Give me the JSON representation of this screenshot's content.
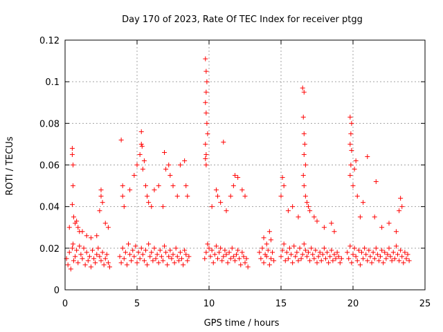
{
  "chart_data": {
    "type": "scatter",
    "title": "Day 170 of 2023, Rate Of TEC Index for receiver ptgg",
    "xlabel": "GPS time / hours",
    "ylabel": "ROTI / TECUs",
    "xlim": [
      0,
      25
    ],
    "ylim": [
      0,
      0.12
    ],
    "x_ticks": [
      0,
      5,
      10,
      15,
      20,
      25
    ],
    "x_tick_labels": [
      "0",
      "5",
      "10",
      "15",
      "20",
      "25"
    ],
    "y_ticks": [
      0,
      0.02,
      0.04,
      0.06,
      0.08,
      0.1,
      0.12
    ],
    "y_tick_labels": [
      "0",
      "0.02",
      "0.04",
      "0.06",
      "0.08",
      "0.1",
      "0.12"
    ],
    "grid": true,
    "marker": "plus",
    "color": "#ff0000",
    "series": [
      {
        "x": [
          0.1,
          0.2,
          0.3,
          0.4,
          0.5,
          0.55,
          0.6,
          0.7,
          0.8,
          0.9,
          1.0,
          1.1,
          1.2,
          1.3,
          1.4,
          1.5,
          1.6,
          1.7,
          1.8,
          1.9,
          2.0,
          2.1,
          2.2,
          2.3,
          2.4,
          2.5,
          2.6,
          2.7,
          2.8,
          2.9,
          3.0,
          3.1,
          0.5,
          0.5,
          0.55,
          0.55,
          0.5,
          0.6,
          0.7,
          0.9,
          1.2,
          1.5,
          2.5,
          2.5,
          2.6,
          3.0,
          2.4,
          1.8,
          0.3,
          0.8,
          1.0,
          2.2,
          2.8,
          3.8,
          3.9,
          4.0,
          4.1,
          4.2,
          4.3,
          4.4,
          4.5,
          4.6,
          4.7,
          4.8,
          4.9,
          5.0,
          5.1,
          5.2,
          5.3,
          5.4,
          5.5,
          5.6,
          5.7,
          5.8,
          5.9,
          6.0,
          6.1,
          6.2,
          6.3,
          6.4,
          6.5,
          6.6,
          6.7,
          6.8,
          6.9,
          7.0,
          7.1,
          7.2,
          7.3,
          7.4,
          7.5,
          7.6,
          7.7,
          7.8,
          7.9,
          8.0,
          8.1,
          8.2,
          8.3,
          8.4,
          8.5,
          8.6,
          4.0,
          4.0,
          4.1,
          4.5,
          4.8,
          5.0,
          5.2,
          5.3,
          5.3,
          5.35,
          5.4,
          5.5,
          5.6,
          5.7,
          5.8,
          6.0,
          6.2,
          6.5,
          6.9,
          7.0,
          7.2,
          7.3,
          7.5,
          7.8,
          8.0,
          8.3,
          8.4,
          8.5,
          3.9,
          6.8,
          9.7,
          9.8,
          9.9,
          10.0,
          10.1,
          10.2,
          10.3,
          10.4,
          10.5,
          10.6,
          10.7,
          10.8,
          10.9,
          11.0,
          11.1,
          11.2,
          11.3,
          11.4,
          11.5,
          11.6,
          11.7,
          11.8,
          11.9,
          12.0,
          12.1,
          12.2,
          12.3,
          12.4,
          12.5,
          12.6,
          12.7,
          9.75,
          9.8,
          9.85,
          9.8,
          9.75,
          9.8,
          9.85,
          9.9,
          9.75,
          9.8,
          9.75,
          9.8,
          10.5,
          10.6,
          11.0,
          11.5,
          11.7,
          11.8,
          12.0,
          12.3,
          12.5,
          10.2,
          10.8,
          11.2,
          13.5,
          13.6,
          13.7,
          13.8,
          13.9,
          14.0,
          14.1,
          14.2,
          14.3,
          14.4,
          14.5,
          13.8,
          14.0,
          14.2,
          14.3,
          15.0,
          15.1,
          15.2,
          15.3,
          15.4,
          15.5,
          15.6,
          15.7,
          15.8,
          15.9,
          16.0,
          16.1,
          16.2,
          16.3,
          16.4,
          16.5,
          16.6,
          16.7,
          16.8,
          16.9,
          17.0,
          17.1,
          17.2,
          17.3,
          17.4,
          17.5,
          17.6,
          17.7,
          17.8,
          17.9,
          18.0,
          18.1,
          18.2,
          18.3,
          18.4,
          18.5,
          18.6,
          18.7,
          18.8,
          18.9,
          19.0,
          19.1,
          19.2,
          15.1,
          15.2,
          15.0,
          16.5,
          16.6,
          16.55,
          16.6,
          16.65,
          16.6,
          16.7,
          16.55,
          16.6,
          16.7,
          16.8,
          16.9,
          17.0,
          17.3,
          17.5,
          18.0,
          18.5,
          18.7,
          15.5,
          15.8,
          16.2,
          19.6,
          19.7,
          19.8,
          19.9,
          20.0,
          20.1,
          20.2,
          20.3,
          20.4,
          20.5,
          20.6,
          20.7,
          20.8,
          20.9,
          21.0,
          21.1,
          21.2,
          21.3,
          21.4,
          21.5,
          21.6,
          21.7,
          21.8,
          21.9,
          22.0,
          22.1,
          22.2,
          22.3,
          22.4,
          22.5,
          22.6,
          22.7,
          22.8,
          22.9,
          23.0,
          23.1,
          23.2,
          23.3,
          23.4,
          23.5,
          23.6,
          23.7,
          23.8,
          23.9,
          19.8,
          19.9,
          19.85,
          19.8,
          19.9,
          19.85,
          19.8,
          20.0,
          20.3,
          20.7,
          21.6,
          20.2,
          20.5,
          21.0,
          22.0,
          22.5,
          23.0,
          23.2,
          23.3,
          23.4,
          20.1,
          21.5
        ],
        "y": [
          0.015,
          0.012,
          0.018,
          0.01,
          0.02,
          0.022,
          0.014,
          0.016,
          0.019,
          0.013,
          0.021,
          0.017,
          0.015,
          0.02,
          0.012,
          0.018,
          0.014,
          0.016,
          0.011,
          0.019,
          0.015,
          0.013,
          0.017,
          0.02,
          0.016,
          0.014,
          0.018,
          0.012,
          0.015,
          0.017,
          0.013,
          0.011,
          0.068,
          0.065,
          0.06,
          0.05,
          0.041,
          0.035,
          0.032,
          0.03,
          0.028,
          0.026,
          0.048,
          0.045,
          0.042,
          0.03,
          0.038,
          0.025,
          0.03,
          0.033,
          0.028,
          0.026,
          0.032,
          0.016,
          0.013,
          0.02,
          0.015,
          0.018,
          0.012,
          0.022,
          0.017,
          0.014,
          0.019,
          0.016,
          0.021,
          0.013,
          0.018,
          0.015,
          0.02,
          0.017,
          0.014,
          0.019,
          0.012,
          0.022,
          0.016,
          0.018,
          0.014,
          0.02,
          0.015,
          0.017,
          0.013,
          0.019,
          0.016,
          0.014,
          0.021,
          0.018,
          0.012,
          0.016,
          0.019,
          0.015,
          0.017,
          0.013,
          0.02,
          0.016,
          0.014,
          0.018,
          0.015,
          0.012,
          0.019,
          0.017,
          0.014,
          0.016,
          0.05,
          0.045,
          0.04,
          0.048,
          0.055,
          0.06,
          0.065,
          0.076,
          0.07,
          0.069,
          0.058,
          0.062,
          0.05,
          0.045,
          0.042,
          0.04,
          0.048,
          0.05,
          0.066,
          0.058,
          0.06,
          0.055,
          0.05,
          0.045,
          0.06,
          0.062,
          0.05,
          0.045,
          0.072,
          0.04,
          0.015,
          0.018,
          0.022,
          0.02,
          0.016,
          0.019,
          0.013,
          0.017,
          0.021,
          0.015,
          0.018,
          0.02,
          0.014,
          0.016,
          0.019,
          0.017,
          0.013,
          0.018,
          0.015,
          0.02,
          0.016,
          0.014,
          0.017,
          0.019,
          0.015,
          0.012,
          0.018,
          0.016,
          0.013,
          0.015,
          0.011,
          0.111,
          0.105,
          0.1,
          0.095,
          0.09,
          0.085,
          0.08,
          0.075,
          0.07,
          0.065,
          0.063,
          0.06,
          0.048,
          0.045,
          0.071,
          0.045,
          0.05,
          0.055,
          0.054,
          0.048,
          0.045,
          0.04,
          0.042,
          0.038,
          0.018,
          0.015,
          0.02,
          0.013,
          0.017,
          0.016,
          0.019,
          0.012,
          0.015,
          0.018,
          0.014,
          0.025,
          0.022,
          0.028,
          0.024,
          0.016,
          0.019,
          0.022,
          0.014,
          0.018,
          0.015,
          0.02,
          0.017,
          0.013,
          0.021,
          0.016,
          0.018,
          0.014,
          0.02,
          0.015,
          0.017,
          0.022,
          0.019,
          0.016,
          0.018,
          0.014,
          0.02,
          0.017,
          0.015,
          0.019,
          0.013,
          0.016,
          0.018,
          0.014,
          0.017,
          0.02,
          0.015,
          0.018,
          0.013,
          0.016,
          0.019,
          0.014,
          0.017,
          0.015,
          0.018,
          0.016,
          0.013,
          0.015,
          0.054,
          0.05,
          0.045,
          0.097,
          0.095,
          0.083,
          0.075,
          0.07,
          0.065,
          0.06,
          0.055,
          0.05,
          0.045,
          0.042,
          0.04,
          0.038,
          0.035,
          0.033,
          0.03,
          0.032,
          0.028,
          0.038,
          0.04,
          0.035,
          0.018,
          0.015,
          0.021,
          0.013,
          0.017,
          0.02,
          0.016,
          0.014,
          0.019,
          0.012,
          0.018,
          0.015,
          0.02,
          0.017,
          0.014,
          0.019,
          0.016,
          0.013,
          0.018,
          0.015,
          0.02,
          0.017,
          0.014,
          0.016,
          0.019,
          0.013,
          0.018,
          0.015,
          0.017,
          0.02,
          0.016,
          0.014,
          0.018,
          0.015,
          0.021,
          0.017,
          0.014,
          0.019,
          0.016,
          0.013,
          0.018,
          0.015,
          0.017,
          0.014,
          0.083,
          0.08,
          0.075,
          0.07,
          0.067,
          0.06,
          0.055,
          0.05,
          0.045,
          0.042,
          0.052,
          0.062,
          0.035,
          0.064,
          0.03,
          0.032,
          0.028,
          0.038,
          0.044,
          0.04,
          0.058,
          0.035
        ]
      }
    ]
  }
}
